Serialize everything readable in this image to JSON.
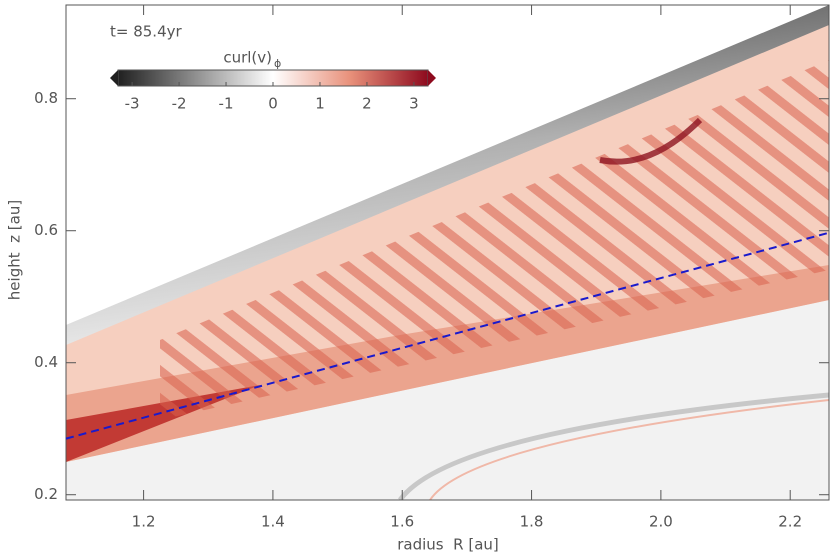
{
  "chart_data": {
    "type": "contour",
    "title": "t= 85.4yr",
    "xlabel": "radius  R [au]",
    "ylabel": "height  z [au]",
    "xlim": [
      1.08,
      2.26
    ],
    "ylim": [
      0.192,
      0.942
    ],
    "xticks": [
      1.2,
      1.4,
      1.6,
      1.8,
      {
        "value": 2,
        "label": "2.0"
      },
      2.2
    ],
    "yticks": [
      0.2,
      0.4,
      0.6,
      0.8
    ],
    "colorbar": {
      "label": "curl(v)",
      "label_sub": "ϕ",
      "clim": [
        -3.3,
        3.3
      ],
      "ticks": [
        -3,
        -2,
        -1,
        0,
        1,
        2,
        3
      ]
    },
    "series": [
      {
        "color": "#1a1acc",
        "x": [
          1.08,
          2.26
        ],
        "y": [
          0.285,
          0.597
        ]
      }
    ]
  }
}
